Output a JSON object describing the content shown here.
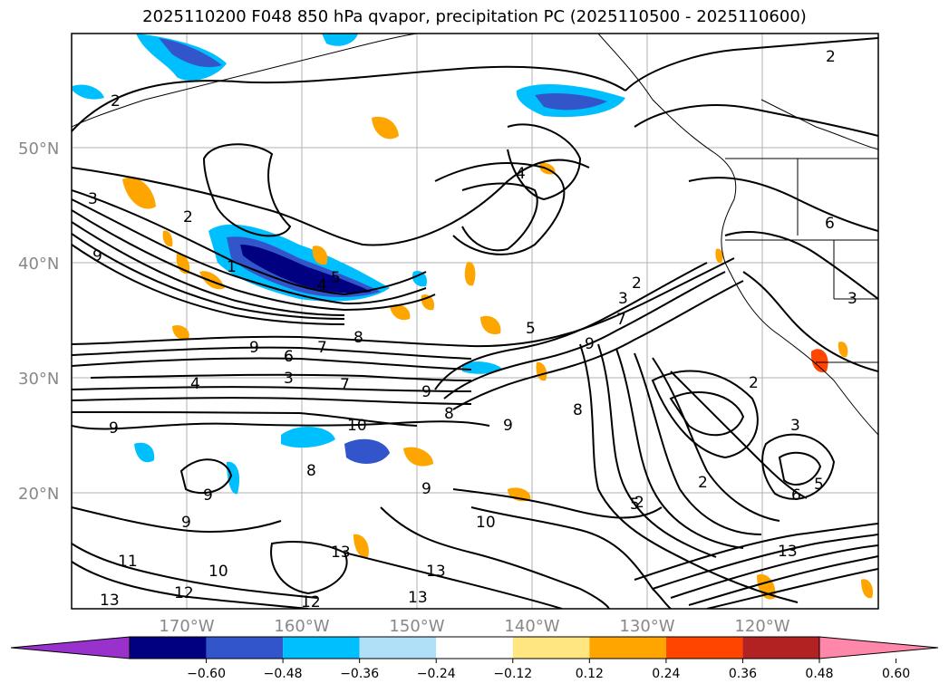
{
  "title": "2025110200 F048 850 hPa qvapor, precipitation PC (2025110500 - 2025110600)",
  "lat_labels": [
    "50°N",
    "40°N",
    "30°N",
    "20°N"
  ],
  "lon_labels": [
    "170°W",
    "160°W",
    "150°W",
    "140°W",
    "130°W",
    "120°W"
  ],
  "colorbar": {
    "ticks": [
      "−0.60",
      "−0.48",
      "−0.36",
      "−0.24",
      "−0.12",
      "0.12",
      "0.24",
      "0.36",
      "0.48",
      "0.60"
    ],
    "colors": [
      "#9932cc",
      "#000080",
      "#3355cc",
      "#00bfff",
      "#b0e0f8",
      "#ffffff",
      "#ffe680",
      "#ffa500",
      "#ff4500",
      "#b22222",
      "#ff88aa"
    ]
  },
  "contour_labels": [
    "2",
    "2",
    "2",
    "3",
    "4",
    "1",
    "5",
    "4",
    "6",
    "7",
    "8",
    "9",
    "9",
    "6",
    "7",
    "8",
    "4",
    "3",
    "5",
    "7",
    "9",
    "10",
    "8",
    "9",
    "8",
    "2",
    "3",
    "9",
    "9",
    "9",
    "9",
    "10",
    "11",
    "12",
    "13",
    "13",
    "12",
    "13",
    "2",
    "5",
    "6",
    "3",
    "6",
    "3",
    "2",
    "13",
    "13",
    "10",
    "9",
    "2",
    "5"
  ]
}
